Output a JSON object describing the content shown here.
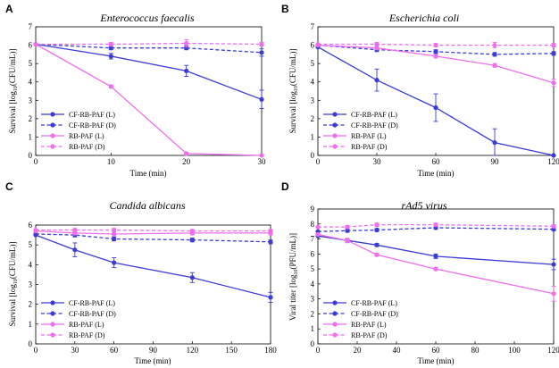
{
  "chart_data": [
    {
      "letter": "A",
      "type": "line",
      "title": "Enterococcus faecalis",
      "xlabel": "Time (min)",
      "ylabel_main": "Survival [log",
      "ylabel_sub": "10",
      "ylabel_end": "(CFU/mL)]",
      "xlim": [
        0,
        30
      ],
      "ylim": [
        0,
        7
      ],
      "xticks": [
        "0",
        "10",
        "20",
        "30"
      ],
      "xtick_values": [
        0,
        10,
        20,
        30
      ],
      "yticks": [
        "0",
        "1",
        "2",
        "3",
        "4",
        "5",
        "6",
        "7"
      ],
      "ytick_values": [
        0,
        1,
        2,
        3,
        4,
        5,
        6,
        7
      ],
      "legend_position": "lower-left",
      "series": [
        {
          "name": "CF-RB-PAF (L)",
          "color": "#3b3bd6",
          "dashed": false,
          "x": [
            0,
            10,
            20,
            30
          ],
          "y": [
            6.05,
            5.4,
            4.6,
            3.05
          ],
          "err": [
            0,
            0.15,
            0.3,
            0.5
          ]
        },
        {
          "name": "CF-RB-PAF (D)",
          "color": "#3b3bd6",
          "dashed": true,
          "x": [
            0,
            10,
            20,
            30
          ],
          "y": [
            6.05,
            5.85,
            5.85,
            5.6
          ],
          "err": [
            0,
            0.1,
            0.1,
            0.2
          ]
        },
        {
          "name": "RB-PAF (L)",
          "color": "#ee6eee",
          "dashed": false,
          "x": [
            0,
            10,
            20,
            30
          ],
          "y": [
            6.05,
            3.75,
            0.1,
            0.0
          ],
          "err": [
            0,
            0.08,
            0.08,
            0
          ]
        },
        {
          "name": "RB-PAF (D)",
          "color": "#ee6eee",
          "dashed": true,
          "x": [
            0,
            10,
            20,
            30
          ],
          "y": [
            6.05,
            6.05,
            6.1,
            6.05
          ],
          "err": [
            0,
            0.1,
            0.2,
            0.1
          ]
        }
      ]
    },
    {
      "letter": "B",
      "type": "line",
      "title": "Escherichia coli",
      "xlabel": "Time (min)",
      "ylabel_main": "Survival [log",
      "ylabel_sub": "10",
      "ylabel_end": "(CFU/mL)]",
      "xlim": [
        0,
        120
      ],
      "ylim": [
        0,
        7
      ],
      "xticks": [
        "0",
        "30",
        "60",
        "90",
        "120"
      ],
      "xtick_values": [
        0,
        30,
        60,
        90,
        120
      ],
      "yticks": [
        "0",
        "1",
        "2",
        "3",
        "4",
        "5",
        "6",
        "7"
      ],
      "ytick_values": [
        0,
        1,
        2,
        3,
        4,
        5,
        6,
        7
      ],
      "legend_position": "lower-left",
      "series": [
        {
          "name": "CF-RB-PAF (L)",
          "color": "#3b3bd6",
          "dashed": false,
          "x": [
            0,
            30,
            60,
            90,
            120
          ],
          "y": [
            5.9,
            4.1,
            2.6,
            0.7,
            0.0
          ],
          "err": [
            0,
            0.6,
            0.75,
            0.75,
            0
          ]
        },
        {
          "name": "CF-RB-PAF (D)",
          "color": "#3b3bd6",
          "dashed": true,
          "x": [
            0,
            30,
            60,
            90,
            120
          ],
          "y": [
            6.0,
            5.75,
            5.65,
            5.5,
            5.55
          ],
          "err": [
            0,
            0.1,
            0.1,
            0.1,
            0.1
          ]
        },
        {
          "name": "RB-PAF (L)",
          "color": "#ee6eee",
          "dashed": false,
          "x": [
            0,
            30,
            60,
            90,
            120
          ],
          "y": [
            6.0,
            5.85,
            5.4,
            4.9,
            3.95
          ],
          "err": [
            0,
            0.1,
            0.1,
            0.1,
            0.2
          ]
        },
        {
          "name": "RB-PAF (D)",
          "color": "#ee6eee",
          "dashed": true,
          "x": [
            0,
            30,
            60,
            90,
            120
          ],
          "y": [
            6.05,
            6.05,
            6.0,
            6.0,
            6.0
          ],
          "err": [
            0,
            0.1,
            0.1,
            0.15,
            0.1
          ]
        }
      ]
    },
    {
      "letter": "C",
      "type": "line",
      "title": "Candida albicans",
      "xlabel": "Time (min)",
      "ylabel_main": "Survival [log",
      "ylabel_sub": "10",
      "ylabel_end": "(CFU/mL)]",
      "xlim": [
        0,
        180
      ],
      "ylim": [
        0,
        6
      ],
      "xticks": [
        "0",
        "30",
        "60",
        "90",
        "120",
        "150",
        "180"
      ],
      "xtick_values": [
        0,
        30,
        60,
        90,
        120,
        150,
        180
      ],
      "yticks": [
        "0",
        "1",
        "2",
        "3",
        "4",
        "5",
        "6"
      ],
      "ytick_values": [
        0,
        1,
        2,
        3,
        4,
        5,
        6
      ],
      "legend_position": "lower-left",
      "series": [
        {
          "name": "CF-RB-PAF (L)",
          "color": "#3b3bd6",
          "dashed": false,
          "x": [
            0,
            30,
            60,
            120,
            180
          ],
          "y": [
            5.5,
            4.75,
            4.1,
            3.35,
            2.35
          ],
          "err": [
            0,
            0.35,
            0.25,
            0.25,
            0.25
          ]
        },
        {
          "name": "CF-RB-PAF (D)",
          "color": "#3b3bd6",
          "dashed": true,
          "x": [
            0,
            30,
            60,
            120,
            180
          ],
          "y": [
            5.55,
            5.5,
            5.3,
            5.25,
            5.15
          ],
          "err": [
            0,
            0.1,
            0.1,
            0.1,
            0.1
          ]
        },
        {
          "name": "RB-PAF (L)",
          "color": "#ee6eee",
          "dashed": false,
          "x": [
            0,
            30,
            60,
            120,
            180
          ],
          "y": [
            5.7,
            5.6,
            5.55,
            5.6,
            5.6
          ],
          "err": [
            0,
            0.1,
            0.1,
            0.1,
            0.1
          ]
        },
        {
          "name": "RB-PAF (D)",
          "color": "#ee6eee",
          "dashed": true,
          "x": [
            0,
            30,
            60,
            120,
            180
          ],
          "y": [
            5.75,
            5.75,
            5.75,
            5.7,
            5.7
          ],
          "err": [
            0,
            0.08,
            0.08,
            0.08,
            0.08
          ]
        }
      ]
    },
    {
      "letter": "D",
      "type": "line",
      "title": "rAd5 virus",
      "xlabel": "Time (min)",
      "ylabel_main": "Viral titer [log",
      "ylabel_sub": "10",
      "ylabel_end": "(PFU/mL)]",
      "xlim": [
        0,
        120
      ],
      "ylim": [
        0,
        9
      ],
      "xticks": [
        "0",
        "20",
        "40",
        "60",
        "80",
        "100",
        "120"
      ],
      "xtick_values": [
        0,
        20,
        40,
        60,
        80,
        100,
        120
      ],
      "yticks": [
        "0",
        "1",
        "2",
        "3",
        "4",
        "5",
        "6",
        "7",
        "8",
        "9"
      ],
      "ytick_values": [
        0,
        1,
        2,
        3,
        4,
        5,
        6,
        7,
        8,
        9
      ],
      "legend_position": "lower-left",
      "series": [
        {
          "name": "CF-RB-PAF (L)",
          "color": "#3b3bd6",
          "dashed": false,
          "x": [
            0,
            15,
            30,
            60,
            120
          ],
          "y": [
            7.2,
            6.9,
            6.6,
            5.85,
            5.3
          ],
          "err": [
            0,
            0.1,
            0.1,
            0.15,
            0.35
          ]
        },
        {
          "name": "CF-RB-PAF (D)",
          "color": "#3b3bd6",
          "dashed": true,
          "x": [
            0,
            15,
            30,
            60,
            120
          ],
          "y": [
            7.5,
            7.55,
            7.6,
            7.75,
            7.65
          ],
          "err": [
            0,
            0.1,
            0.1,
            0.1,
            0.1
          ]
        },
        {
          "name": "RB-PAF (L)",
          "color": "#ee6eee",
          "dashed": false,
          "x": [
            0,
            15,
            30,
            60,
            120
          ],
          "y": [
            7.3,
            6.9,
            5.95,
            5.0,
            3.35
          ],
          "err": [
            0,
            0.15,
            0.1,
            0.1,
            0.5
          ]
        },
        {
          "name": "RB-PAF (D)",
          "color": "#ee6eee",
          "dashed": true,
          "x": [
            0,
            15,
            30,
            60,
            120
          ],
          "y": [
            7.8,
            7.8,
            7.95,
            7.95,
            7.85
          ],
          "err": [
            0,
            0.1,
            0.1,
            0.1,
            0.1
          ]
        }
      ]
    }
  ]
}
